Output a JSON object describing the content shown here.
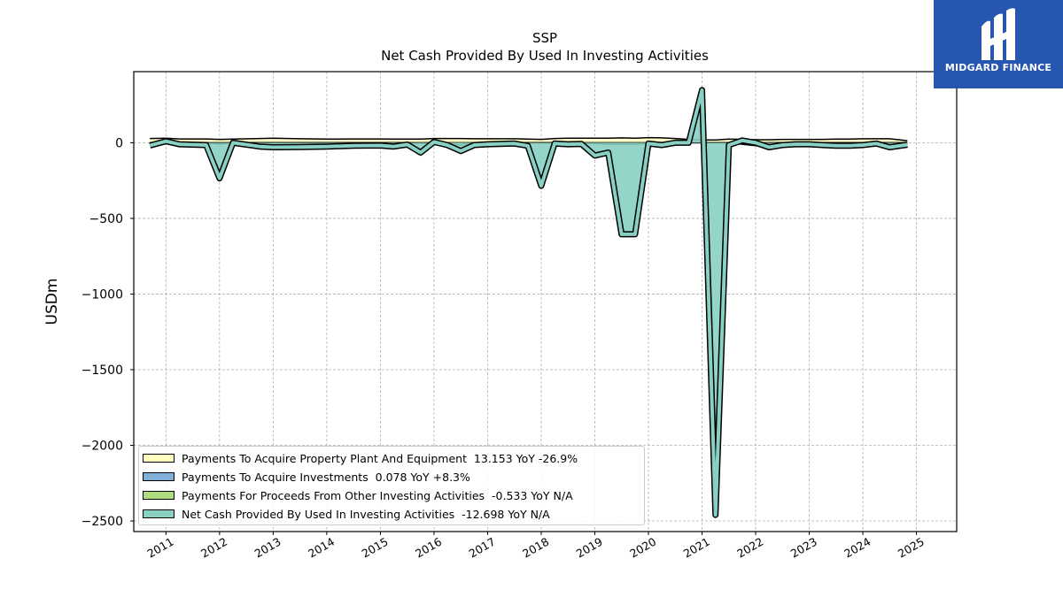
{
  "chart_data": {
    "type": "area",
    "title": "SSP",
    "subtitle": "Net Cash Provided By Used In Investing Activities",
    "ylabel": "USDm",
    "xlabel": "",
    "ylim": [
      -2570,
      470
    ],
    "xlim": [
      2010.4,
      2025.75
    ],
    "yticks": [
      0,
      -500,
      -1000,
      -1500,
      -2000,
      -2500
    ],
    "ytick_labels": [
      "0",
      "−500",
      "−1000",
      "−1500",
      "−2000",
      "−2500"
    ],
    "xticks": [
      2011,
      2012,
      2013,
      2014,
      2015,
      2016,
      2017,
      2018,
      2019,
      2020,
      2021,
      2022,
      2023,
      2024,
      2025
    ],
    "xtick_labels": [
      "2011",
      "2012",
      "2013",
      "2014",
      "2015",
      "2016",
      "2017",
      "2018",
      "2019",
      "2020",
      "2021",
      "2022",
      "2023",
      "2024",
      "2025"
    ],
    "grid": true,
    "legend_position": "lower-left",
    "x": [
      2010.7,
      2011.0,
      2011.25,
      2011.75,
      2012.0,
      2012.25,
      2012.75,
      2013.0,
      2013.5,
      2014.0,
      2014.5,
      2015.0,
      2015.25,
      2015.5,
      2015.75,
      2016.0,
      2016.25,
      2016.5,
      2016.75,
      2017.0,
      2017.5,
      2017.75,
      2018.0,
      2018.25,
      2018.5,
      2018.75,
      2019.0,
      2019.25,
      2019.5,
      2019.75,
      2020.0,
      2020.25,
      2020.5,
      2020.75,
      2021.0,
      2021.25,
      2021.5,
      2021.75,
      2022.0,
      2022.25,
      2022.5,
      2022.75,
      2023.0,
      2023.25,
      2023.5,
      2023.75,
      2024.0,
      2024.25,
      2024.5,
      2024.83
    ],
    "series": [
      {
        "name": "Payments To Acquire Property Plant And Equipment  13.153 YoY -26.9%",
        "color": "#ffffc0",
        "values": [
          28,
          30,
          25,
          25,
          22,
          24,
          28,
          30,
          26,
          24,
          25,
          25,
          24,
          24,
          24,
          28,
          28,
          28,
          26,
          26,
          26,
          24,
          22,
          28,
          30,
          30,
          30,
          30,
          32,
          30,
          34,
          32,
          28,
          22,
          18,
          18,
          24,
          22,
          20,
          20,
          22,
          22,
          22,
          22,
          24,
          24,
          26,
          26,
          26,
          13.153
        ]
      },
      {
        "name": "Payments To Acquire Investments  0.078 YoY +8.3%",
        "color": "#80b0d8",
        "values": [
          0,
          0,
          0,
          0,
          -10,
          0,
          0,
          0,
          0,
          0,
          0,
          0,
          0,
          0,
          0,
          0,
          0,
          0,
          0,
          0,
          0,
          0,
          0,
          0,
          0,
          0,
          0,
          0,
          0,
          0,
          0,
          0,
          0,
          0,
          0,
          0,
          0,
          0,
          0,
          0,
          0,
          0,
          0,
          0,
          0,
          0,
          0,
          0,
          0,
          0.078
        ]
      },
      {
        "name": "Payments For Proceeds From Other Investing Activities  -0.533 YoY N/A",
        "color": "#b0dc80",
        "values": [
          0,
          0,
          0,
          0,
          0,
          0,
          0,
          0,
          0,
          0,
          0,
          0,
          0,
          0,
          -5,
          0,
          -10,
          -15,
          0,
          0,
          0,
          0,
          0,
          0,
          0,
          -5,
          -5,
          -10,
          -10,
          -10,
          -5,
          -5,
          -5,
          0,
          0,
          0,
          0,
          -10,
          -20,
          0,
          0,
          0,
          0,
          0,
          0,
          0,
          0,
          0,
          0,
          -0.533
        ]
      },
      {
        "name": "Net Cash Provided By Used In Investing Activities  -12.698 YoY N/A",
        "color": "#88d0c4",
        "values": [
          -18,
          10,
          -10,
          -15,
          -235,
          0,
          -25,
          -30,
          -28,
          -25,
          -20,
          -18,
          -25,
          -12,
          -65,
          5,
          -15,
          -55,
          -15,
          -10,
          -5,
          -20,
          -285,
          -5,
          -10,
          -8,
          -85,
          -65,
          -605,
          -605,
          -5,
          -15,
          0,
          0,
          348,
          -2460,
          -15,
          15,
          0,
          -30,
          -15,
          -10,
          -10,
          -15,
          -20,
          -20,
          -15,
          -5,
          -30,
          -12.698
        ]
      }
    ]
  },
  "branding": {
    "logo_text": "MIDGARD FINANCE",
    "logo_color": "#2656b0"
  }
}
